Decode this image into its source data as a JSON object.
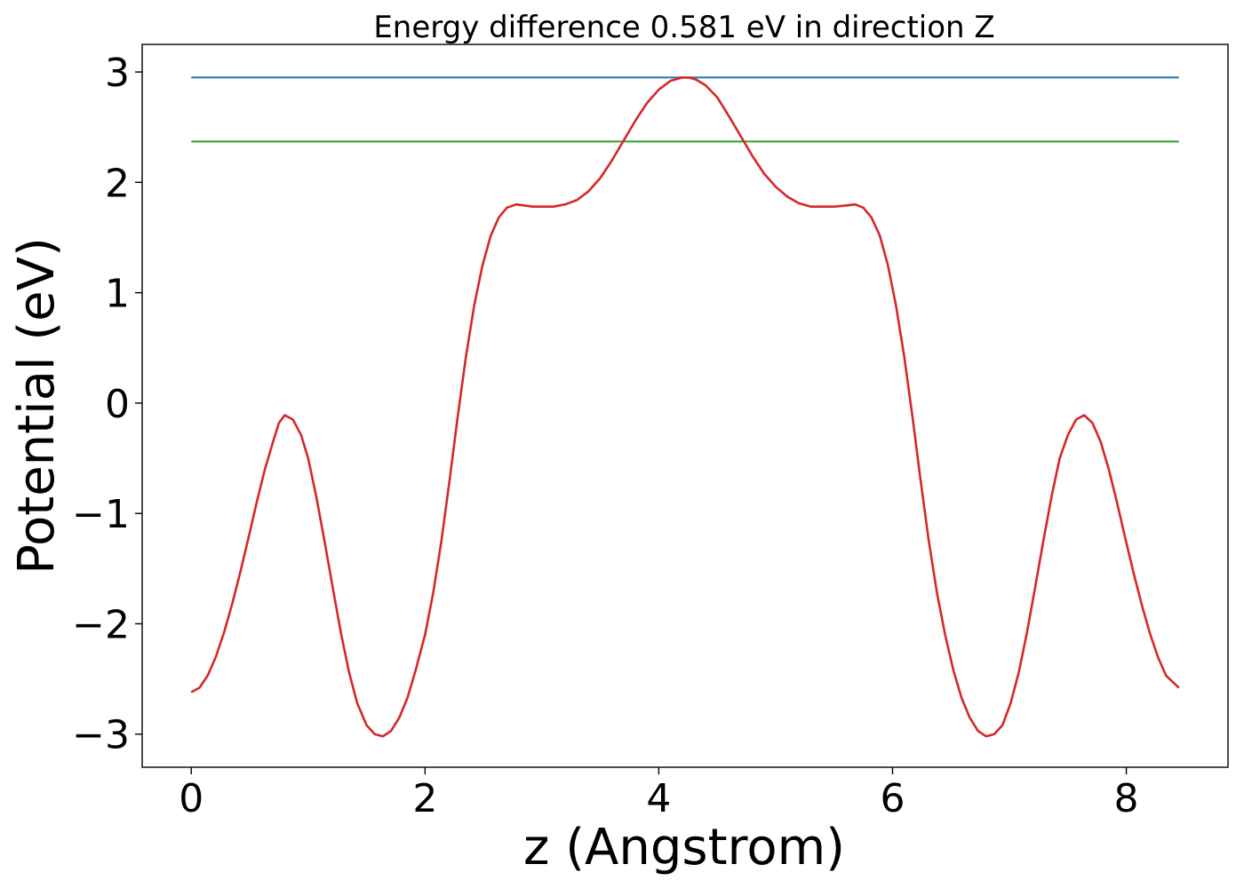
{
  "chart_data": {
    "type": "line",
    "title": "Energy difference 0.581 eV in direction Z",
    "xlabel": "z (Angstrom)",
    "ylabel": "Potential (eV)",
    "xlim": [
      -0.42,
      8.87
    ],
    "ylim": [
      -3.3,
      3.25
    ],
    "xticks": [
      0,
      2,
      4,
      6,
      8
    ],
    "xtick_labels": [
      "0",
      "2",
      "4",
      "6",
      "8"
    ],
    "yticks": [
      -3,
      -2,
      -1,
      0,
      1,
      2,
      3
    ],
    "ytick_labels": [
      "−3",
      "−2",
      "−1",
      "0",
      "1",
      "2",
      "3"
    ],
    "grid": false,
    "series": [
      {
        "color": "#1f77b4",
        "x": [
          0,
          8.45
        ],
        "y": [
          2.95,
          2.95
        ]
      },
      {
        "color": "#2ca02c",
        "x": [
          0,
          8.45
        ],
        "y": [
          2.37,
          2.37
        ]
      },
      {
        "color": "#d62728",
        "x": [
          0,
          0.07,
          0.14,
          0.21,
          0.28,
          0.35,
          0.42,
          0.49,
          0.56,
          0.63,
          0.7,
          0.75,
          0.8,
          0.87,
          0.94,
          1.0,
          1.07,
          1.14,
          1.21,
          1.28,
          1.35,
          1.42,
          1.5,
          1.57,
          1.64,
          1.71,
          1.78,
          1.85,
          1.92,
          2.0,
          2.07,
          2.14,
          2.21,
          2.28,
          2.35,
          2.42,
          2.49,
          2.56,
          2.63,
          2.7,
          2.78,
          2.85,
          2.92,
          3.0,
          3.1,
          3.2,
          3.3,
          3.4,
          3.5,
          3.6,
          3.7,
          3.8,
          3.9,
          4.0,
          4.1,
          4.2,
          4.26,
          4.32,
          4.4,
          4.5,
          4.6,
          4.7,
          4.8,
          4.9,
          5.0,
          5.1,
          5.2,
          5.3,
          5.4,
          5.5,
          5.6,
          5.68,
          5.75,
          5.82,
          5.89,
          5.96,
          6.03,
          6.1,
          6.17,
          6.24,
          6.31,
          6.38,
          6.45,
          6.52,
          6.59,
          6.66,
          6.73,
          6.8,
          6.87,
          6.94,
          7.01,
          7.08,
          7.15,
          7.22,
          7.29,
          7.36,
          7.43,
          7.5,
          7.57,
          7.64,
          7.71,
          7.78,
          7.85,
          7.92,
          7.99,
          8.06,
          8.13,
          8.2,
          8.27,
          8.34,
          8.45
        ],
        "y": [
          -2.62,
          -2.58,
          -2.47,
          -2.3,
          -2.08,
          -1.82,
          -1.53,
          -1.22,
          -0.9,
          -0.6,
          -0.35,
          -0.18,
          -0.11,
          -0.15,
          -0.29,
          -0.5,
          -0.85,
          -1.25,
          -1.67,
          -2.08,
          -2.44,
          -2.72,
          -2.92,
          -3.0,
          -3.02,
          -2.97,
          -2.85,
          -2.67,
          -2.42,
          -2.1,
          -1.72,
          -1.25,
          -0.7,
          -0.12,
          0.42,
          0.88,
          1.24,
          1.51,
          1.68,
          1.77,
          1.8,
          1.79,
          1.78,
          1.78,
          1.78,
          1.8,
          1.84,
          1.92,
          2.04,
          2.2,
          2.38,
          2.56,
          2.72,
          2.84,
          2.92,
          2.95,
          2.95,
          2.93,
          2.88,
          2.77,
          2.6,
          2.42,
          2.24,
          2.08,
          1.96,
          1.87,
          1.81,
          1.78,
          1.78,
          1.78,
          1.79,
          1.8,
          1.77,
          1.68,
          1.52,
          1.25,
          0.88,
          0.42,
          -0.12,
          -0.7,
          -1.25,
          -1.72,
          -2.1,
          -2.42,
          -2.67,
          -2.85,
          -2.97,
          -3.02,
          -3.0,
          -2.92,
          -2.72,
          -2.44,
          -2.08,
          -1.67,
          -1.25,
          -0.85,
          -0.5,
          -0.29,
          -0.15,
          -0.11,
          -0.18,
          -0.35,
          -0.6,
          -0.9,
          -1.22,
          -1.53,
          -1.82,
          -2.08,
          -2.3,
          -2.47,
          -2.58
        ]
      }
    ]
  }
}
